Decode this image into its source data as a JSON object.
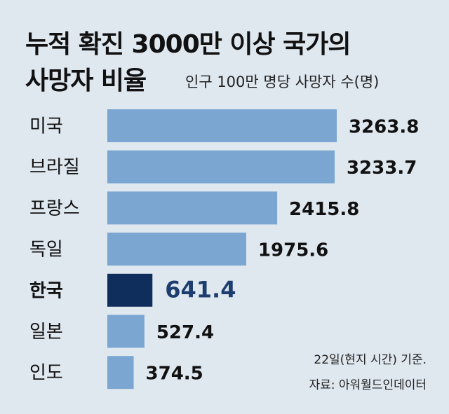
{
  "title_line1": "누적 확진 3000만 이상 국가의",
  "title_line2": "사망자 비율",
  "subtitle": "인구 100만 명당 사망자 수(명)",
  "note_date": "22일(현지 시간) 기준.",
  "note_source": "자료: 아워월드인데이터",
  "colors": {
    "background": "#dfe7ef",
    "bar": "#7aa6d1",
    "highlight_bar": "#0f2e5c",
    "highlight_text": "#1d3d6e"
  },
  "chart_data": {
    "type": "bar",
    "orientation": "horizontal",
    "categories": [
      "미국",
      "브라질",
      "프랑스",
      "독일",
      "한국",
      "일본",
      "인도"
    ],
    "values": [
      3263.8,
      3233.7,
      2415.8,
      1975.6,
      641.4,
      527.4,
      374.5
    ],
    "value_labels": [
      "3263.8",
      "3233.7",
      "2415.8",
      "1975.6",
      "641.4",
      "527.4",
      "374.5"
    ],
    "highlight": "한국",
    "xlim": [
      0,
      3263.8
    ]
  }
}
